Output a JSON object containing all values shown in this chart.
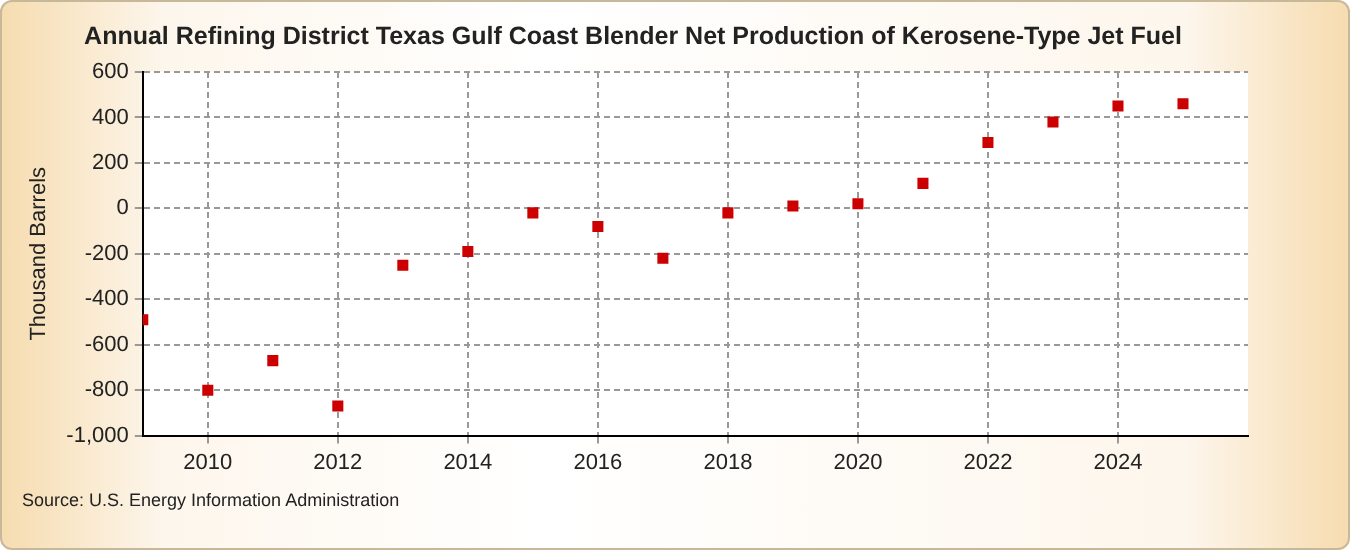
{
  "chart_data": {
    "type": "scatter",
    "title": "Annual Refining District Texas Gulf Coast Blender Net Production of Kerosene-Type Jet Fuel",
    "ylabel": "Thousand Barrels",
    "x": [
      2009,
      2010,
      2011,
      2012,
      2013,
      2014,
      2015,
      2016,
      2017,
      2018,
      2019,
      2020,
      2021,
      2022,
      2023,
      2024,
      2025
    ],
    "series": [
      {
        "color": "#cc0000",
        "values": [
          -490,
          -800,
          -670,
          -870,
          -250,
          -190,
          -20,
          -80,
          -220,
          -20,
          10,
          20,
          110,
          290,
          380,
          450,
          460
        ]
      }
    ],
    "xlim": [
      2009,
      2026
    ],
    "xticks": [
      2010,
      2012,
      2014,
      2016,
      2018,
      2020,
      2022,
      2024
    ],
    "ylim": [
      -1000,
      600
    ],
    "yticks": [
      {
        "value": -1000,
        "label": "-1,000"
      },
      -800,
      -600,
      -400,
      -200,
      0,
      200,
      400,
      600
    ],
    "grid": true,
    "marker": "square",
    "legend": false,
    "annotations": [
      "Source: U.S. Energy Information Administration"
    ]
  }
}
